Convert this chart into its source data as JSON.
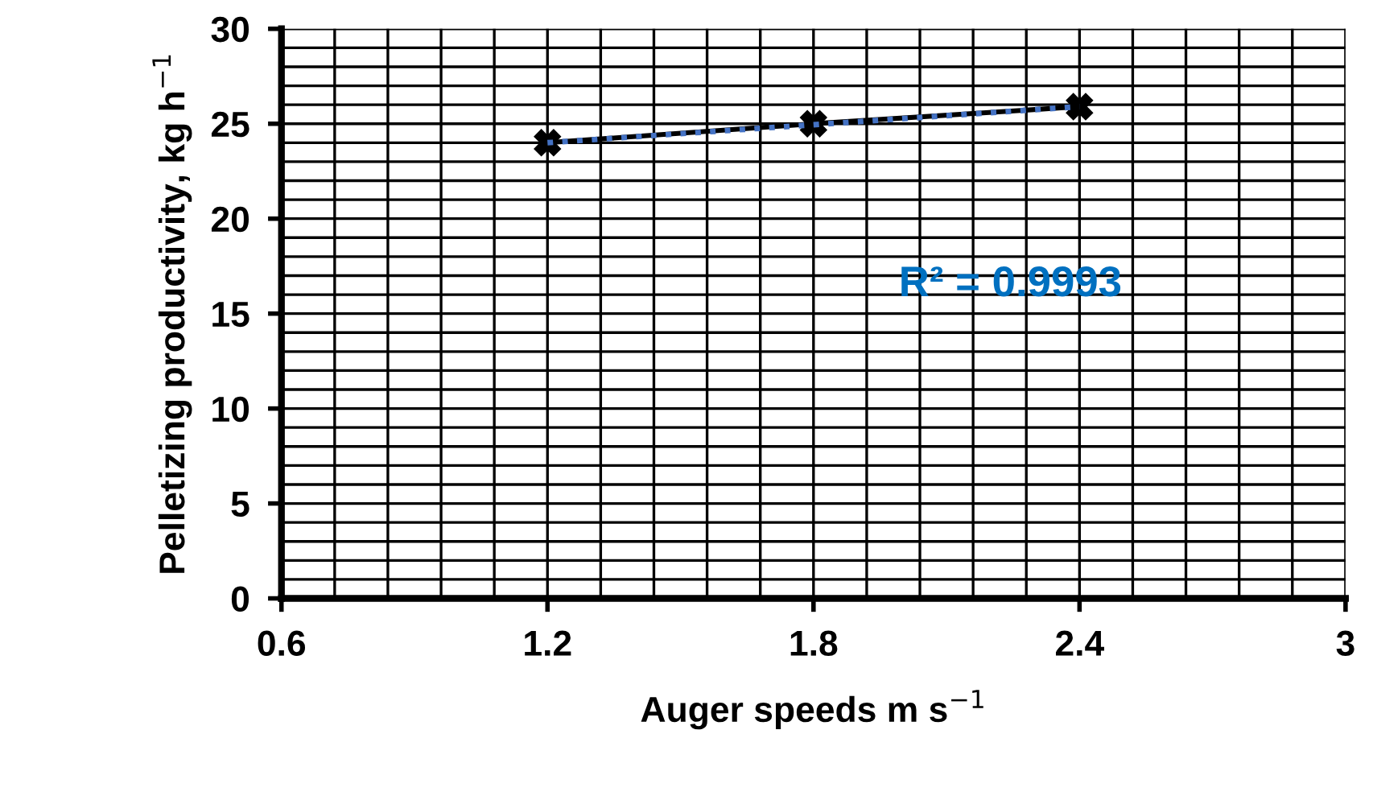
{
  "chart_data": {
    "type": "line",
    "xlabel": "Auger speeds m s$^{−1}$",
    "ylabel": "Pelletizing productivity, kg h$^{−1}$",
    "x": [
      1.2,
      1.8,
      2.4
    ],
    "series": [
      {
        "color": "#000000",
        "values": [
          24,
          25,
          25.9
        ],
        "marker": "cross",
        "line_style": "solid"
      },
      {
        "type": "line",
        "x": [
          1.2,
          2.4
        ],
        "color": "#4472c4",
        "values": [
          24,
          25.9
        ],
        "marker": "none",
        "line_style": "dotted"
      }
    ],
    "annotations": [
      "R² = 0.9993"
    ],
    "xlim": [
      0.6,
      3
    ],
    "xticks": [
      0.6,
      1.2,
      1.8,
      2.4,
      3
    ],
    "ylim": [
      0,
      30
    ],
    "yticks": [
      0,
      5,
      10,
      15,
      20,
      25,
      30
    ],
    "grid": true,
    "legend": false
  }
}
